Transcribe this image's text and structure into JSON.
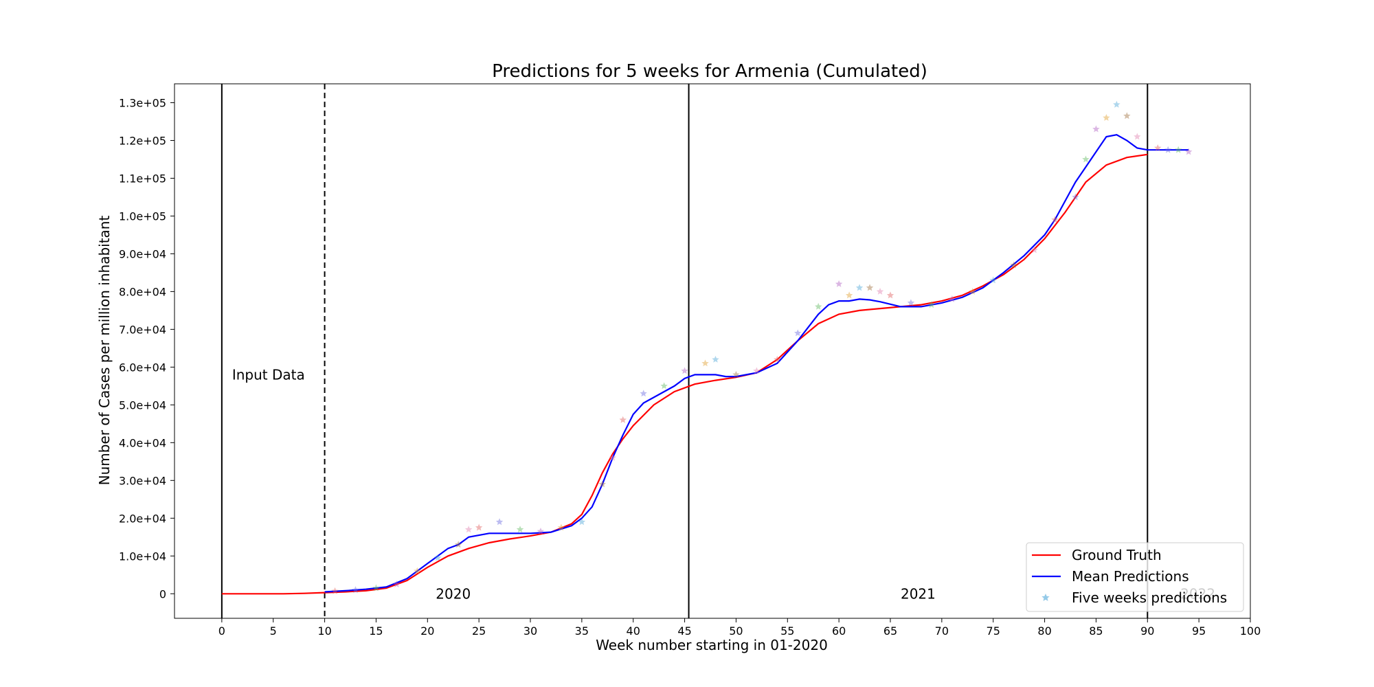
{
  "chart_data": {
    "type": "line",
    "title": "Predictions for 5 weeks for Armenia (Cumulated)",
    "xlabel": "Week number starting in 01-2020",
    "ylabel": "Number of Cases per million inhabitant",
    "xlim": [
      -4.6,
      100
    ],
    "ylim": [
      -6500,
      135000
    ],
    "x_ticks": [
      0,
      5,
      10,
      15,
      20,
      25,
      30,
      35,
      40,
      45,
      50,
      55,
      60,
      65,
      70,
      75,
      80,
      85,
      90,
      95,
      100
    ],
    "x_tick_labels": [
      "0",
      "5",
      "10",
      "15",
      "20",
      "25",
      "30",
      "35",
      "40",
      "45",
      "50",
      "55",
      "60",
      "65",
      "70",
      "75",
      "80",
      "85",
      "90",
      "95",
      "100"
    ],
    "y_ticks": [
      0,
      10000,
      20000,
      30000,
      40000,
      50000,
      60000,
      70000,
      80000,
      90000,
      100000,
      110000,
      120000,
      130000
    ],
    "y_tick_labels": [
      "0",
      "1.0e+04",
      "2.0e+04",
      "3.0e+04",
      "4.0e+04",
      "5.0e+04",
      "6.0e+04",
      "7.0e+04",
      "8.0e+04",
      "9.0e+04",
      "1.0e+05",
      "1.1e+05",
      "1.2e+05",
      "1.3e+05"
    ],
    "grid": false,
    "legend_position": "bottom-right",
    "vlines": [
      {
        "x": 0,
        "style": "solid"
      },
      {
        "x": 10,
        "style": "dashed"
      },
      {
        "x": 45.4,
        "style": "solid"
      },
      {
        "x": 90,
        "style": "solid"
      }
    ],
    "annotations": [
      {
        "text": "Input Data",
        "x": 1,
        "y": 58000,
        "color": "#000000"
      },
      {
        "text": "2020",
        "x": 20.8,
        "y": 0,
        "color": "#000000"
      },
      {
        "text": "2021",
        "x": 66,
        "y": 0,
        "color": "#000000"
      },
      {
        "text": "2022",
        "x": 93.2,
        "y": 0,
        "color": "#cccccc"
      }
    ],
    "series": [
      {
        "name": "Ground Truth",
        "color": "#ff0000",
        "kind": "line",
        "x": [
          0,
          2,
          4,
          6,
          8,
          10,
          12,
          14,
          16,
          18,
          20,
          22,
          24,
          26,
          28,
          30,
          32,
          34,
          35,
          36,
          37,
          38,
          39,
          40,
          42,
          44,
          46,
          48,
          50,
          52,
          54,
          56,
          58,
          60,
          62,
          64,
          66,
          68,
          70,
          72,
          74,
          76,
          78,
          80,
          82,
          84,
          86,
          88,
          90
        ],
        "values": [
          0,
          0,
          0,
          0,
          100,
          300,
          500,
          800,
          1500,
          3500,
          7000,
          10000,
          12000,
          13500,
          14500,
          15300,
          16300,
          18500,
          21000,
          26000,
          32000,
          37000,
          41000,
          44500,
          50000,
          53500,
          55500,
          56500,
          57300,
          58500,
          62000,
          67000,
          71500,
          74000,
          75000,
          75500,
          76000,
          76500,
          77500,
          79000,
          81500,
          84500,
          88500,
          94000,
          101000,
          109000,
          113500,
          115500,
          116300
        ]
      },
      {
        "name": "Mean Predictions",
        "color": "#0000ff",
        "kind": "line",
        "x": [
          10,
          12,
          14,
          16,
          18,
          20,
          21,
          22,
          23,
          24,
          26,
          28,
          30,
          32,
          34,
          35,
          36,
          37,
          38,
          39,
          40,
          41,
          42,
          44,
          45,
          46,
          47,
          48,
          49,
          50,
          52,
          54,
          56,
          58,
          59,
          60,
          61,
          62,
          63,
          64,
          66,
          68,
          70,
          72,
          74,
          76,
          78,
          80,
          81,
          82,
          83,
          84,
          85,
          86,
          87,
          88,
          89,
          90,
          92,
          94
        ],
        "values": [
          500,
          800,
          1200,
          1800,
          4000,
          8000,
          10000,
          12000,
          13000,
          15000,
          16000,
          16000,
          16000,
          16300,
          18000,
          20000,
          23000,
          29000,
          36000,
          42000,
          47500,
          50500,
          52000,
          55000,
          57000,
          58000,
          58000,
          58000,
          57500,
          57500,
          58500,
          61000,
          67000,
          74000,
          76500,
          77500,
          77500,
          78000,
          77800,
          77300,
          76000,
          76000,
          77000,
          78500,
          81000,
          85000,
          89500,
          95000,
          99000,
          104000,
          109000,
          113000,
          117000,
          121000,
          121500,
          120000,
          118000,
          117500,
          117500,
          117500
        ]
      },
      {
        "name": "Five weeks predictions",
        "color": "#4ea6d8",
        "kind": "scatter",
        "x": [
          11,
          13,
          15,
          17,
          19,
          21,
          23,
          24,
          25,
          27,
          29,
          31,
          33,
          35,
          37,
          38,
          39,
          41,
          43,
          45,
          47,
          48,
          50,
          52,
          54,
          56,
          58,
          60,
          61,
          62,
          63,
          64,
          65,
          67,
          69,
          71,
          73,
          75,
          77,
          79,
          81,
          83,
          84,
          85,
          86,
          87,
          88,
          89,
          91,
          92,
          93,
          94
        ],
        "values": [
          700,
          1000,
          1500,
          2500,
          6000,
          9500,
          13000,
          17000,
          17500,
          19000,
          17000,
          16500,
          17500,
          19000,
          29000,
          36000,
          46000,
          53000,
          55000,
          59000,
          61000,
          62000,
          58000,
          59000,
          62000,
          69000,
          76000,
          82000,
          79000,
          81000,
          81000,
          80000,
          79000,
          77000,
          76500,
          78000,
          80000,
          83000,
          87000,
          91000,
          99000,
          105000,
          115000,
          123000,
          126000,
          129500,
          126500,
          121000,
          118000,
          117500,
          117500,
          117000
        ]
      }
    ]
  }
}
